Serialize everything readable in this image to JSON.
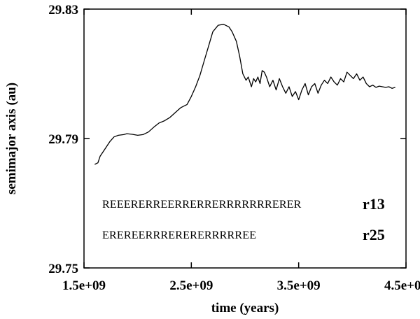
{
  "chart_data": {
    "type": "line",
    "title": "",
    "xlabel": "time (years)",
    "ylabel": "semimajor axis (au)",
    "xlim": [
      1500000000,
      4500000000
    ],
    "ylim": [
      29.75,
      29.83
    ],
    "xticks": [
      1500000000,
      2500000000,
      3500000000,
      4500000000
    ],
    "xtick_labels": [
      "1.5e+09",
      "2.5e+09",
      "3.5e+09",
      "4.5e+09"
    ],
    "yticks": [
      29.75,
      29.79,
      29.83
    ],
    "ytick_labels": [
      "29.75",
      "29.79",
      "29.83"
    ],
    "grid": false,
    "series": [
      {
        "x": [
          1600000000,
          1630000000,
          1650000000,
          1670000000,
          1700000000,
          1740000000,
          1780000000,
          1820000000,
          1870000000,
          1900000000,
          1950000000,
          2000000000,
          2050000000,
          2100000000,
          2150000000,
          2200000000,
          2250000000,
          2300000000,
          2350000000,
          2400000000,
          2430000000,
          2460000000,
          2500000000,
          2540000000,
          2580000000,
          2620000000,
          2660000000,
          2700000000,
          2750000000,
          2800000000,
          2850000000,
          2880000000,
          2920000000,
          2950000000,
          2980000000,
          3010000000,
          3030000000,
          3060000000,
          3080000000,
          3100000000,
          3120000000,
          3140000000,
          3160000000,
          3180000000,
          3200000000,
          3230000000,
          3260000000,
          3290000000,
          3320000000,
          3350000000,
          3380000000,
          3410000000,
          3440000000,
          3470000000,
          3500000000,
          3530000000,
          3560000000,
          3590000000,
          3620000000,
          3650000000,
          3680000000,
          3710000000,
          3740000000,
          3770000000,
          3800000000,
          3830000000,
          3860000000,
          3890000000,
          3920000000,
          3950000000,
          3980000000,
          4010000000,
          4040000000,
          4070000000,
          4100000000,
          4130000000,
          4160000000,
          4190000000,
          4220000000,
          4250000000,
          4280000000,
          4310000000,
          4340000000,
          4370000000,
          4400000000
        ],
        "y": [
          29.782,
          29.7825,
          29.7845,
          29.7855,
          29.787,
          29.789,
          29.7905,
          29.791,
          29.7912,
          29.7915,
          29.7913,
          29.791,
          29.7912,
          29.792,
          29.7935,
          29.7948,
          29.7955,
          29.7965,
          29.798,
          29.7995,
          29.8,
          29.8005,
          29.803,
          29.806,
          29.8095,
          29.814,
          29.8185,
          29.823,
          29.825,
          29.8253,
          29.8245,
          29.823,
          29.82,
          29.8155,
          29.81,
          29.808,
          29.809,
          29.806,
          29.8085,
          29.8075,
          29.809,
          29.807,
          29.811,
          29.8105,
          29.809,
          29.806,
          29.808,
          29.805,
          29.8085,
          29.806,
          29.804,
          29.806,
          29.803,
          29.8045,
          29.802,
          29.805,
          29.807,
          29.8035,
          29.806,
          29.807,
          29.804,
          29.8065,
          29.808,
          29.807,
          29.809,
          29.8075,
          29.8065,
          29.8085,
          29.8075,
          29.8105,
          29.8095,
          29.8085,
          29.81,
          29.808,
          29.809,
          29.807,
          29.806,
          29.8065,
          29.8058,
          29.8062,
          29.806,
          29.8058,
          29.806,
          29.8055,
          29.8058
        ]
      }
    ],
    "annotations": [
      {
        "sequence": "REEERERREERRERRERRRRRRRERER",
        "name": "r13"
      },
      {
        "sequence": "EREREERRRERERERRRRREE",
        "name": "r25"
      }
    ]
  }
}
